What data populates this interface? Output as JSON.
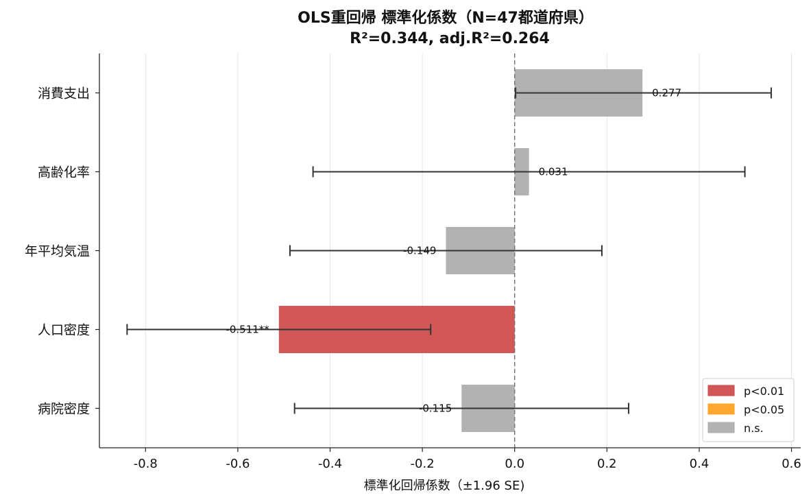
{
  "chart_data": {
    "type": "bar",
    "orientation": "horizontal",
    "title_line1": "OLS重回帰 標準化係数（N=47都道府県）",
    "title_line2": "R²=0.344, adj.R²=0.264",
    "xlabel": "標準化回帰係数（±1.96 SE)",
    "ylabel": "",
    "xlim": [
      -0.9,
      0.62
    ],
    "x_ticks": [
      -0.8,
      -0.6,
      -0.4,
      -0.2,
      0.0,
      0.2,
      0.4,
      0.6
    ],
    "x_tick_labels": [
      "-0.8",
      "-0.6",
      "-0.4",
      "-0.2",
      "0.0",
      "0.2",
      "0.4",
      "0.6"
    ],
    "grid": "vertical",
    "zero_line": "dashed",
    "legend_position": "bottom-right",
    "categories": [
      "消費支出",
      "高齢化率",
      "年平均気温",
      "人口密度",
      "病院密度"
    ],
    "values": [
      0.277,
      0.031,
      -0.149,
      -0.511,
      -0.115
    ],
    "ci_low": [
      0.002,
      -0.437,
      -0.487,
      -0.84,
      -0.477
    ],
    "ci_high": [
      0.556,
      0.499,
      0.189,
      -0.182,
      0.247
    ],
    "significance": [
      "n.s.",
      "n.s.",
      "n.s.",
      "p<0.01",
      "n.s."
    ],
    "value_labels": [
      "0.277",
      "0.031",
      "-0.149",
      "-0.511**",
      "-0.115"
    ],
    "legend": [
      {
        "label": "p<0.01",
        "color": "#cd4646"
      },
      {
        "label": "p<0.05",
        "color": "#ff9f1a"
      },
      {
        "label": "n.s.",
        "color": "#aaaaaa"
      }
    ]
  }
}
